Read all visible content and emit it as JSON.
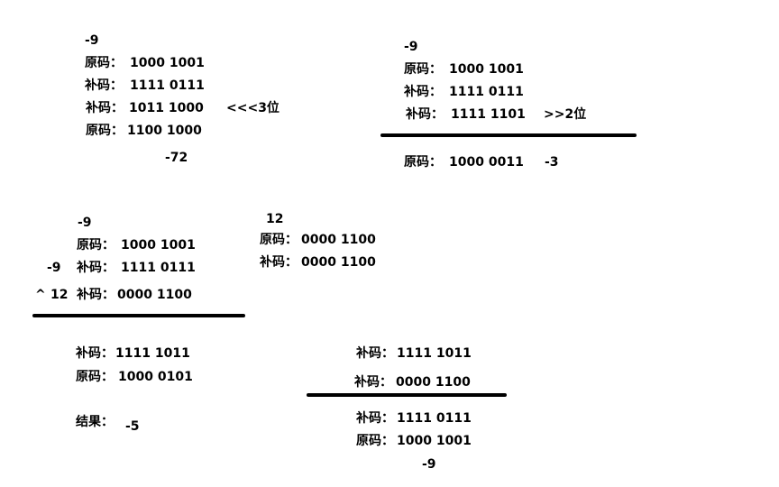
{
  "line_color": "#000000",
  "background_color": "#ffffff",
  "left_shift": {
    "value": "-9",
    "yuanma_label": "原码：",
    "yuanma": "1000 1001",
    "buma_label": "补码：",
    "buma": "1111 0111",
    "buma2_label": "补码：",
    "buma2": "1011 1000",
    "operator": "<<<3位",
    "yuanma2_label": "原码：",
    "yuanma2": "1100 1000",
    "result": "-72"
  },
  "right_shift": {
    "value": "-9",
    "yuanma_label": "原码：",
    "yuanma": "1000 1001",
    "buma_label": "补码：",
    "buma": "1111 0111",
    "buma2_label": "补码：",
    "buma2": "1111 1101",
    "operator": ">>2位",
    "result_label": "原码：",
    "result_bin": "1000 0011",
    "result": "-3"
  },
  "xor": {
    "value": "-9",
    "yuanma_label": "原码：",
    "yuanma": "1000 1001",
    "side_value": "-9",
    "buma_label": "补码：",
    "buma": "1111 0111",
    "op_symbol": "^",
    "op_value": "12",
    "buma12_label": "补码：",
    "buma12": "0000 1100",
    "res_buma_label": "补码：",
    "res_buma": "1111 1011",
    "res_yuanma_label": "原码：",
    "res_yuanma": "1000 0101",
    "jieguo_label": "结果：",
    "jieguo": "-5"
  },
  "twelve": {
    "value": "12",
    "yuanma_label": "原码：",
    "yuanma": "0000 1100",
    "buma_label": "补码：",
    "buma": "0000 1100"
  },
  "xor_back": {
    "buma1_label": "补码：",
    "buma1": "1111 1011",
    "buma2_label": "补码：",
    "buma2": "0000 1100",
    "buma3_label": "补码：",
    "buma3": "1111 0111",
    "yuanma_label": "原码：",
    "yuanma": "1000 1001",
    "result": "-9"
  }
}
